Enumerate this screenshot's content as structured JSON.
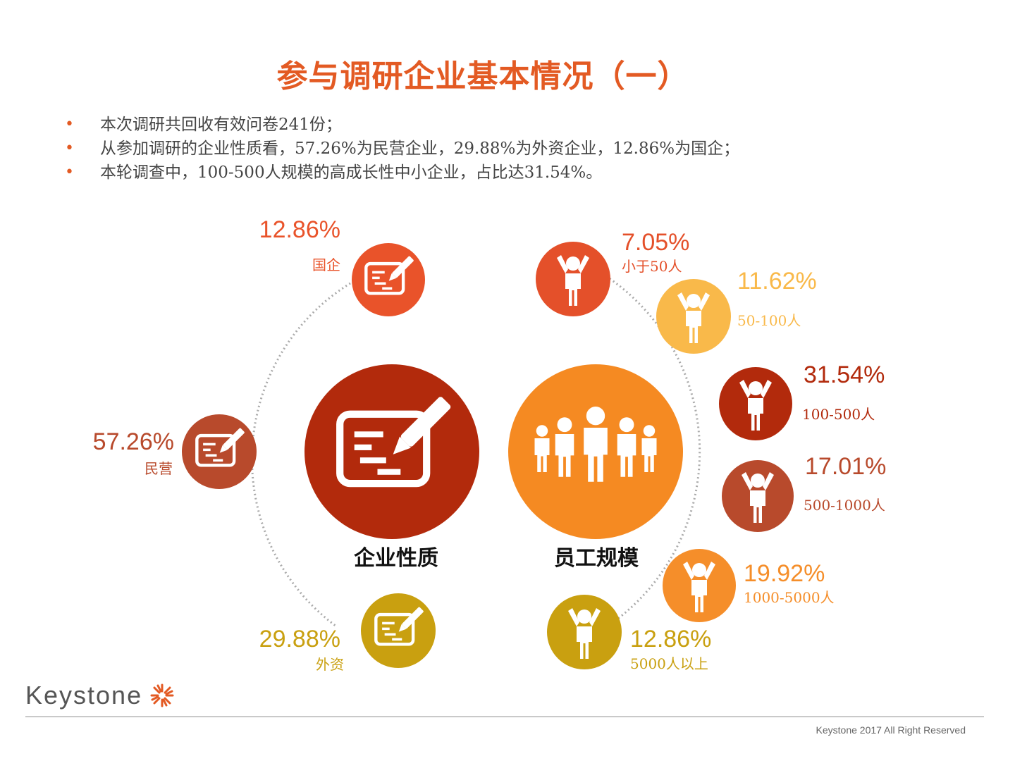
{
  "title": "参与调研企业基本情况（一）",
  "bullets": [
    "本次调研共回收有效问卷241份；",
    "从参加调研的企业性质看，57.26%为民营企业，29.88%为外资企业，12.86%为国企；",
    "本轮调查中，100-500人规模的高成长性中小企业，占比达31.54%。"
  ],
  "ownership": {
    "center_label": "企业性质",
    "items": [
      {
        "pct": "12.86%",
        "label": "国企",
        "color": "#e9532a"
      },
      {
        "pct": "57.26%",
        "label": "民营",
        "color": "#b84a2c"
      },
      {
        "pct": "29.88%",
        "label": "外资",
        "color": "#c9a010"
      }
    ]
  },
  "size": {
    "center_label": "员工规模",
    "items": [
      {
        "pct": "7.05%",
        "label": "小于50人",
        "color": "#e4502a"
      },
      {
        "pct": "11.62%",
        "label": "50-100人",
        "color": "#f9b94a"
      },
      {
        "pct": "31.54%",
        "label": "100-500人",
        "color": "#b22a0c"
      },
      {
        "pct": "17.01%",
        "label": "500-1000人",
        "color": "#b84a2c"
      },
      {
        "pct": "19.92%",
        "label": "1000-5000人",
        "color": "#f58e2a"
      },
      {
        "pct": "12.86%",
        "label": "5000人以上",
        "color": "#c9a010"
      }
    ]
  },
  "colors": {
    "center_left": "#b22a0c",
    "center_right": "#f58a22",
    "accent": "#e35a23"
  },
  "icons": {
    "ownership": "document-pen-icon",
    "size": "person-icon",
    "group": "group-icon"
  },
  "footer": {
    "logo": "Keystone",
    "copyright": "Keystone 2017 All Right Reserved"
  }
}
